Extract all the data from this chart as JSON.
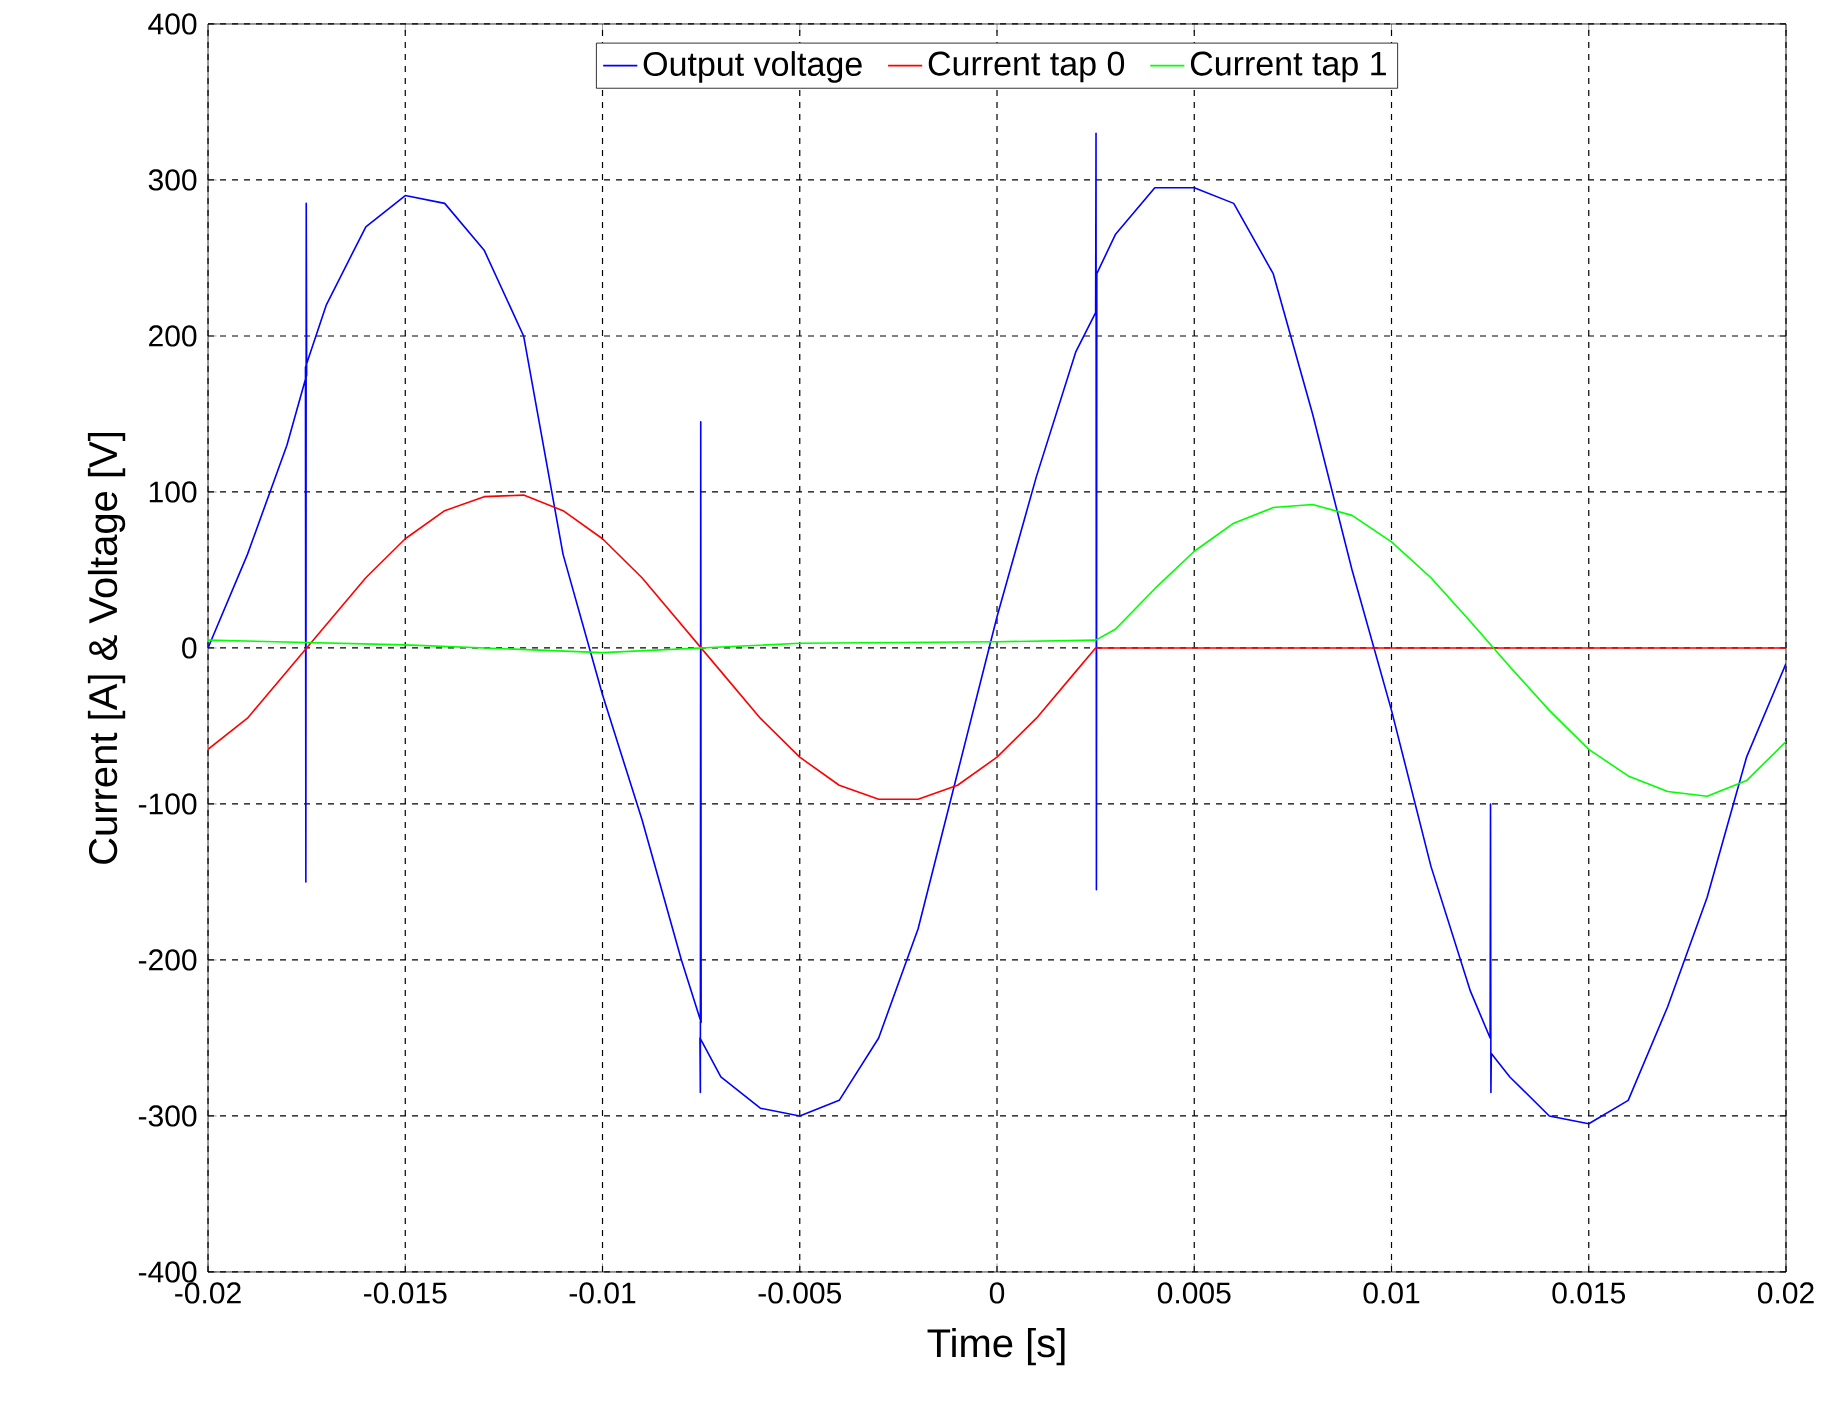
{
  "chart_data": {
    "type": "line",
    "xlabel": "Time [s]",
    "ylabel": "Current [A] & Voltage [V]",
    "xlim": [
      -0.02,
      0.02
    ],
    "ylim": [
      -400,
      400
    ],
    "xticks": [
      -0.02,
      -0.015,
      -0.01,
      -0.005,
      0,
      0.005,
      0.01,
      0.015,
      0.02
    ],
    "yticks": [
      -400,
      -300,
      -200,
      -100,
      0,
      100,
      200,
      300,
      400
    ],
    "grid": true,
    "legend": "top",
    "marker": "none",
    "line_style": "solid",
    "series": [
      {
        "name": "Output voltage",
        "color": "#0000ff",
        "x": [
          -0.02,
          -0.019,
          -0.018,
          -0.0175,
          -0.01751,
          -0.01752,
          -0.01753,
          -0.017,
          -0.016,
          -0.015,
          -0.014,
          -0.013,
          -0.012,
          -0.011,
          -0.01,
          -0.009,
          -0.008,
          -0.0075,
          -0.00751,
          -0.00752,
          -0.00753,
          -0.007,
          -0.006,
          -0.005,
          -0.004,
          -0.003,
          -0.002,
          -0.001,
          0,
          0.001,
          0.002,
          0.0025,
          0.00251,
          0.00252,
          0.00253,
          0.003,
          0.004,
          0.005,
          0.006,
          0.007,
          0.008,
          0.009,
          0.01,
          0.011,
          0.012,
          0.0125,
          0.01251,
          0.01252,
          0.01253,
          0.013,
          0.014,
          0.015,
          0.016,
          0.017,
          0.018,
          0.019,
          0.02
        ],
        "values": [
          0,
          60,
          130,
          175,
          285,
          -150,
          180,
          220,
          270,
          290,
          285,
          255,
          200,
          60,
          -30,
          -110,
          -200,
          -240,
          145,
          -285,
          -250,
          -275,
          -295,
          -300,
          -290,
          -250,
          -180,
          -80,
          20,
          110,
          190,
          215,
          330,
          -155,
          240,
          265,
          295,
          295,
          285,
          240,
          150,
          50,
          -40,
          -140,
          -220,
          -250,
          -100,
          -285,
          -260,
          -275,
          -300,
          -305,
          -290,
          -230,
          -160,
          -70,
          -10
        ]
      },
      {
        "name": "Current tap 0",
        "color": "#ff0000",
        "x": [
          -0.02,
          -0.019,
          -0.018,
          -0.017,
          -0.016,
          -0.015,
          -0.014,
          -0.013,
          -0.012,
          -0.011,
          -0.01,
          -0.009,
          -0.008,
          -0.007,
          -0.006,
          -0.005,
          -0.004,
          -0.003,
          -0.002,
          -0.001,
          0,
          0.001,
          0.002,
          0.0025,
          0.01,
          0.02
        ],
        "values": [
          -65,
          -45,
          -15,
          15,
          45,
          70,
          88,
          97,
          98,
          88,
          70,
          45,
          15,
          -15,
          -45,
          -70,
          -88,
          -97,
          -97,
          -88,
          -70,
          -45,
          -15,
          0,
          0,
          0
        ]
      },
      {
        "name": "Current tap 1",
        "color": "#00ff00",
        "x": [
          -0.02,
          -0.015,
          -0.01,
          -0.005,
          0,
          0.0025,
          0.003,
          0.004,
          0.005,
          0.006,
          0.007,
          0.008,
          0.009,
          0.01,
          0.011,
          0.012,
          0.013,
          0.014,
          0.015,
          0.016,
          0.017,
          0.018,
          0.019,
          0.02
        ],
        "values": [
          5,
          2,
          -3,
          3,
          4,
          5,
          12,
          38,
          62,
          80,
          90,
          92,
          85,
          68,
          45,
          17,
          -12,
          -40,
          -65,
          -82,
          -92,
          -95,
          -85,
          -60
        ]
      }
    ]
  }
}
